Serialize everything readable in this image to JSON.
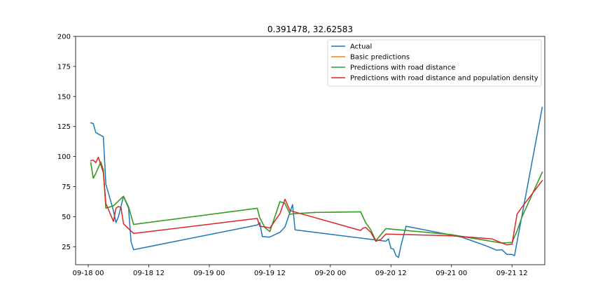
{
  "chart_data": {
    "type": "line",
    "title": "0.391478, 32.62583",
    "xlabel": "",
    "ylabel": "",
    "x_unit": "hours since 09-18 00",
    "xlim": [
      -2.5,
      90.5
    ],
    "ylim": [
      10,
      200
    ],
    "grid": false,
    "legend_position": "top-right",
    "x_ticks": [
      {
        "value": 0,
        "label": "09-18 00"
      },
      {
        "value": 12,
        "label": "09-18 12"
      },
      {
        "value": 24,
        "label": "09-19 00"
      },
      {
        "value": 36,
        "label": "09-19 12"
      },
      {
        "value": 48,
        "label": "09-20 00"
      },
      {
        "value": 60,
        "label": "09-20 12"
      },
      {
        "value": 72,
        "label": "09-21 00"
      },
      {
        "value": 84,
        "label": "09-21 12"
      }
    ],
    "y_ticks": [
      {
        "value": 25,
        "label": "25"
      },
      {
        "value": 50,
        "label": "50"
      },
      {
        "value": 75,
        "label": "75"
      },
      {
        "value": 100,
        "label": "100"
      },
      {
        "value": 125,
        "label": "125"
      },
      {
        "value": 150,
        "label": "150"
      },
      {
        "value": 175,
        "label": "175"
      },
      {
        "value": 200,
        "label": "200"
      }
    ],
    "series": [
      {
        "name": "Actual",
        "color": "#1f77b4",
        "points": [
          [
            0.5,
            128
          ],
          [
            1,
            127.5
          ],
          [
            1.5,
            120
          ],
          [
            3,
            116.5
          ],
          [
            3.5,
            77
          ],
          [
            5,
            55
          ],
          [
            5.5,
            45
          ],
          [
            6,
            50
          ],
          [
            7,
            67
          ],
          [
            8,
            57
          ],
          [
            8.5,
            29
          ],
          [
            9,
            22.5
          ],
          [
            33.5,
            43
          ],
          [
            34,
            45
          ],
          [
            34.5,
            33.5
          ],
          [
            35.5,
            33
          ],
          [
            36,
            33
          ],
          [
            38,
            37
          ],
          [
            39,
            41.5
          ],
          [
            40.5,
            60
          ],
          [
            41,
            39
          ],
          [
            59,
            29.5
          ],
          [
            59.5,
            31.5
          ],
          [
            60,
            23.5
          ],
          [
            60.5,
            23
          ],
          [
            61,
            17.5
          ],
          [
            61.5,
            16
          ],
          [
            62,
            26
          ],
          [
            63,
            42
          ],
          [
            74,
            33
          ],
          [
            79,
            25.5
          ],
          [
            81,
            22
          ],
          [
            82,
            22.5
          ],
          [
            83,
            18.5
          ],
          [
            84,
            18.5
          ],
          [
            84.5,
            17.5
          ],
          [
            85,
            29
          ],
          [
            90,
            141
          ]
        ]
      },
      {
        "name": "Basic predictions",
        "color": "#ff7f0e",
        "points": [
          [
            0.5,
            95
          ],
          [
            1,
            82
          ],
          [
            1.5,
            86
          ],
          [
            2.5,
            95.5
          ],
          [
            3,
            89
          ],
          [
            3.5,
            57
          ],
          [
            5,
            59
          ],
          [
            7,
            67
          ],
          [
            8,
            58
          ],
          [
            9,
            43.5
          ],
          [
            33.5,
            57
          ],
          [
            34,
            49
          ],
          [
            35,
            41
          ],
          [
            36,
            37.5
          ],
          [
            38,
            62.5
          ],
          [
            39,
            61
          ],
          [
            40,
            52
          ],
          [
            41,
            52.5
          ],
          [
            45,
            53.5
          ],
          [
            54,
            54
          ],
          [
            55,
            45
          ],
          [
            56,
            39
          ],
          [
            57,
            30
          ],
          [
            58,
            35
          ],
          [
            59,
            40
          ],
          [
            72,
            35
          ],
          [
            82,
            28
          ],
          [
            84,
            28.5
          ],
          [
            85,
            38
          ],
          [
            86,
            50
          ],
          [
            90,
            87
          ]
        ]
      },
      {
        "name": "Predictions with road distance",
        "color": "#2ca02c",
        "points": [
          [
            0.5,
            95
          ],
          [
            1,
            82
          ],
          [
            1.5,
            86
          ],
          [
            2.5,
            95.5
          ],
          [
            3,
            89
          ],
          [
            3.5,
            57
          ],
          [
            5,
            59
          ],
          [
            7,
            67
          ],
          [
            8,
            58
          ],
          [
            9,
            43.5
          ],
          [
            33.5,
            57
          ],
          [
            34,
            49
          ],
          [
            35,
            41
          ],
          [
            36,
            37.5
          ],
          [
            38,
            62.5
          ],
          [
            39,
            61
          ],
          [
            40,
            52
          ],
          [
            41,
            52.5
          ],
          [
            45,
            53.5
          ],
          [
            54,
            54
          ],
          [
            55,
            45
          ],
          [
            56,
            39
          ],
          [
            57,
            30
          ],
          [
            58,
            35
          ],
          [
            59,
            40
          ],
          [
            72,
            35
          ],
          [
            82,
            28
          ],
          [
            84,
            28.5
          ],
          [
            85,
            38
          ],
          [
            86,
            50
          ],
          [
            90,
            87
          ]
        ]
      },
      {
        "name": "Predictions with road distance and population density",
        "color": "#d62728",
        "points": [
          [
            0.5,
            96.5
          ],
          [
            1,
            97
          ],
          [
            1.5,
            95
          ],
          [
            2,
            99.5
          ],
          [
            3,
            86.5
          ],
          [
            3.5,
            61
          ],
          [
            5,
            46
          ],
          [
            5.5,
            57
          ],
          [
            6,
            58.5
          ],
          [
            6.5,
            57.5
          ],
          [
            7,
            44
          ],
          [
            9,
            36
          ],
          [
            33.5,
            48.5
          ],
          [
            34,
            42
          ],
          [
            35,
            41.5
          ],
          [
            36,
            40.5
          ],
          [
            38,
            52.5
          ],
          [
            39,
            64.5
          ],
          [
            40,
            55
          ],
          [
            54,
            38.5
          ],
          [
            54.5,
            40.5
          ],
          [
            55,
            41
          ],
          [
            56,
            37
          ],
          [
            57,
            29.5
          ],
          [
            58,
            31
          ],
          [
            59,
            35.5
          ],
          [
            72,
            34
          ],
          [
            80,
            31.5
          ],
          [
            82,
            28
          ],
          [
            83,
            26.5
          ],
          [
            84,
            27
          ],
          [
            85,
            52
          ],
          [
            86,
            58
          ],
          [
            90,
            80
          ]
        ]
      }
    ]
  }
}
